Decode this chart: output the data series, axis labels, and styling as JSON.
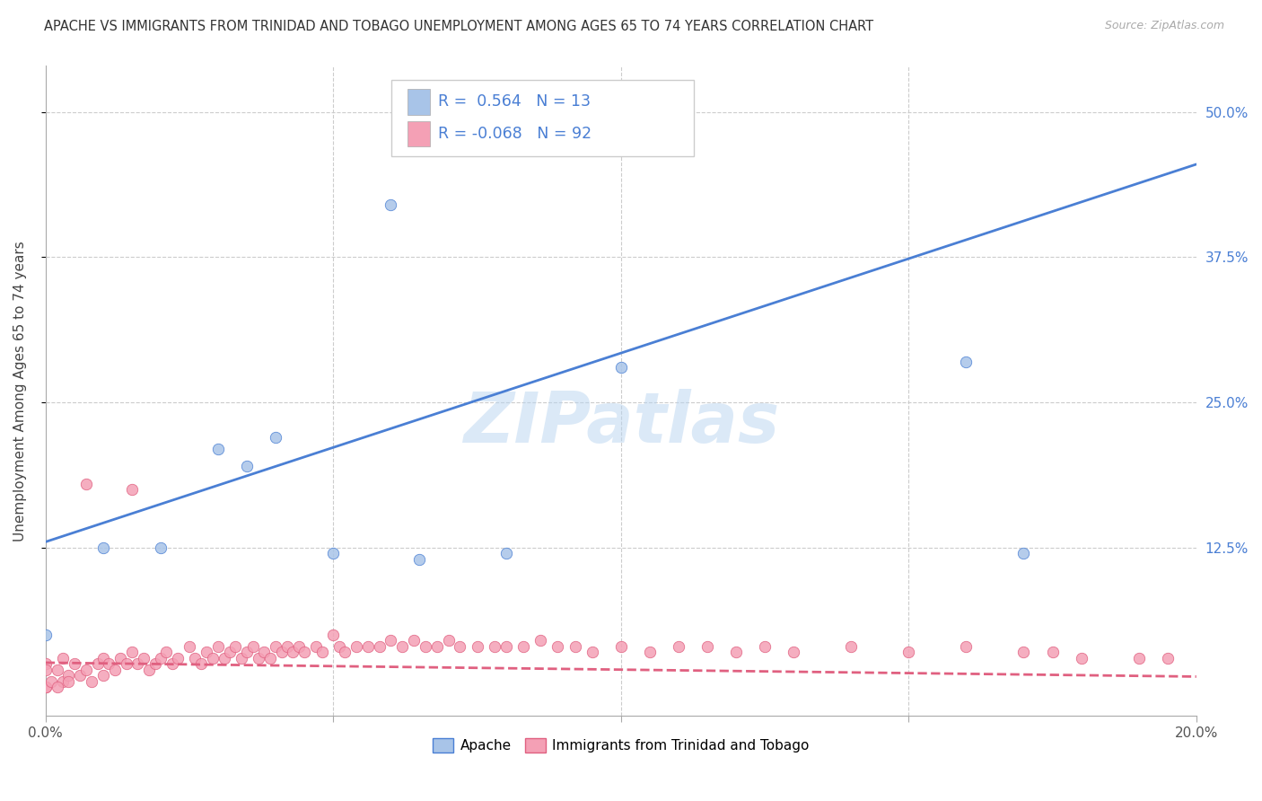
{
  "title": "APACHE VS IMMIGRANTS FROM TRINIDAD AND TOBAGO UNEMPLOYMENT AMONG AGES 65 TO 74 YEARS CORRELATION CHART",
  "source": "Source: ZipAtlas.com",
  "ylabel": "Unemployment Among Ages 65 to 74 years",
  "xlim": [
    0.0,
    0.2
  ],
  "ylim": [
    -0.02,
    0.54
  ],
  "xticks": [
    0.0,
    0.05,
    0.1,
    0.15,
    0.2
  ],
  "xtick_labels": [
    "0.0%",
    "",
    "",
    "",
    "20.0%"
  ],
  "ytick_labels_right": [
    "50.0%",
    "37.5%",
    "25.0%",
    "12.5%"
  ],
  "ytick_vals_right": [
    0.5,
    0.375,
    0.25,
    0.125
  ],
  "watermark": "ZIPatlas",
  "apache_R": 0.564,
  "apache_N": 13,
  "tt_R": -0.068,
  "tt_N": 92,
  "apache_color": "#a8c4e8",
  "tt_color": "#f4a0b5",
  "apache_line_color": "#4a7fd4",
  "tt_line_color": "#e06080",
  "background_color": "#ffffff",
  "grid_color": "#cccccc",
  "apache_line_x0": 0.0,
  "apache_line_y0": 0.13,
  "apache_line_x1": 0.2,
  "apache_line_y1": 0.455,
  "tt_line_x0": 0.0,
  "tt_line_y0": 0.026,
  "tt_line_x1": 0.2,
  "tt_line_y1": 0.014,
  "apache_scatter_x": [
    0.0,
    0.01,
    0.02,
    0.03,
    0.035,
    0.04,
    0.05,
    0.06,
    0.065,
    0.08,
    0.1,
    0.16,
    0.17
  ],
  "apache_scatter_y": [
    0.05,
    0.125,
    0.125,
    0.21,
    0.195,
    0.22,
    0.12,
    0.42,
    0.115,
    0.12,
    0.28,
    0.285,
    0.12
  ],
  "tt_scatter_x": [
    0.0,
    0.0,
    0.0,
    0.002,
    0.003,
    0.003,
    0.004,
    0.005,
    0.006,
    0.007,
    0.008,
    0.009,
    0.01,
    0.01,
    0.011,
    0.012,
    0.013,
    0.014,
    0.015,
    0.016,
    0.017,
    0.018,
    0.019,
    0.02,
    0.021,
    0.022,
    0.023,
    0.025,
    0.026,
    0.027,
    0.028,
    0.029,
    0.03,
    0.031,
    0.032,
    0.033,
    0.034,
    0.035,
    0.036,
    0.037,
    0.038,
    0.039,
    0.04,
    0.041,
    0.042,
    0.043,
    0.044,
    0.045,
    0.047,
    0.048,
    0.05,
    0.051,
    0.052,
    0.054,
    0.056,
    0.058,
    0.06,
    0.062,
    0.064,
    0.066,
    0.068,
    0.07,
    0.072,
    0.075,
    0.078,
    0.08,
    0.083,
    0.086,
    0.089,
    0.092,
    0.095,
    0.1,
    0.105,
    0.11,
    0.115,
    0.12,
    0.125,
    0.13,
    0.14,
    0.15,
    0.16,
    0.17,
    0.175,
    0.18,
    0.19,
    0.195,
    0.0,
    0.001,
    0.002,
    0.004,
    0.007,
    0.015
  ],
  "tt_scatter_y": [
    0.025,
    0.02,
    0.005,
    0.02,
    0.01,
    0.03,
    0.015,
    0.025,
    0.015,
    0.02,
    0.01,
    0.025,
    0.03,
    0.015,
    0.025,
    0.02,
    0.03,
    0.025,
    0.035,
    0.025,
    0.03,
    0.02,
    0.025,
    0.03,
    0.035,
    0.025,
    0.03,
    0.04,
    0.03,
    0.025,
    0.035,
    0.03,
    0.04,
    0.03,
    0.035,
    0.04,
    0.03,
    0.035,
    0.04,
    0.03,
    0.035,
    0.03,
    0.04,
    0.035,
    0.04,
    0.035,
    0.04,
    0.035,
    0.04,
    0.035,
    0.05,
    0.04,
    0.035,
    0.04,
    0.04,
    0.04,
    0.045,
    0.04,
    0.045,
    0.04,
    0.04,
    0.045,
    0.04,
    0.04,
    0.04,
    0.04,
    0.04,
    0.045,
    0.04,
    0.04,
    0.035,
    0.04,
    0.035,
    0.04,
    0.04,
    0.035,
    0.04,
    0.035,
    0.04,
    0.035,
    0.04,
    0.035,
    0.035,
    0.03,
    0.03,
    0.03,
    0.005,
    0.01,
    0.005,
    0.01,
    0.18,
    0.175
  ],
  "title_fontsize": 10.5,
  "axis_label_fontsize": 11,
  "tick_fontsize": 11,
  "legend_fontsize": 11,
  "marker_size": 80
}
